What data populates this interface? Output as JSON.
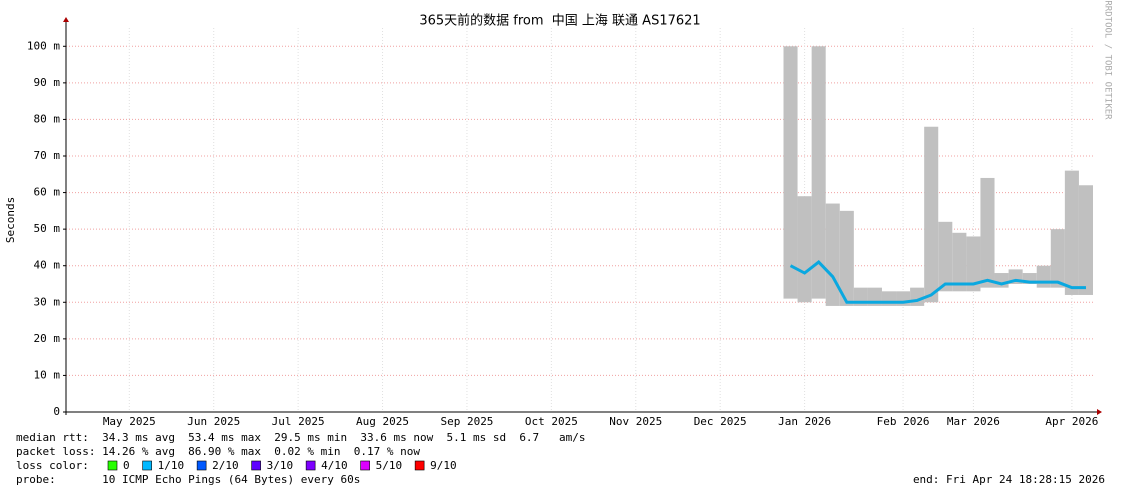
{
  "chart_data": {
    "type": "smoke",
    "title": "365天前的数据 from  中国 上海 联通 AS17621",
    "ylabel": "Seconds",
    "side_text": "RRDTOOL / TOBI OETIKER",
    "ylim": [
      0,
      105
    ],
    "yticks": [
      0,
      {
        "value": 10,
        "label": "10 m"
      },
      {
        "value": 20,
        "label": "20 m"
      },
      {
        "value": 30,
        "label": "30 m"
      },
      {
        "value": 40,
        "label": "40 m"
      },
      {
        "value": 50,
        "label": "50 m"
      },
      {
        "value": 60,
        "label": "60 m"
      },
      {
        "value": 70,
        "label": "70 m"
      },
      {
        "value": 80,
        "label": "80 m"
      },
      {
        "value": 90,
        "label": "90 m"
      },
      {
        "value": 100,
        "label": "100 m"
      }
    ],
    "grid": true,
    "categories": [
      null,
      null,
      null,
      null,
      "May 2025",
      null,
      null,
      null,
      null,
      null,
      "Jun 2025",
      null,
      null,
      null,
      null,
      null,
      "Jul 2025",
      null,
      null,
      null,
      null,
      null,
      "Aug 2025",
      null,
      null,
      null,
      null,
      null,
      "Sep 2025",
      null,
      null,
      null,
      null,
      null,
      "Oct 2025",
      null,
      null,
      null,
      null,
      null,
      "Nov 2025",
      null,
      null,
      null,
      null,
      null,
      "Dec 2025",
      null,
      null,
      null,
      null,
      null,
      "Jan 2026",
      null,
      null,
      null,
      null,
      null,
      null,
      "Feb 2026",
      null,
      null,
      null,
      null,
      "Mar 2026",
      null,
      null,
      null,
      null,
      null,
      null,
      "Apr 2026",
      null
    ],
    "series": [
      {
        "color": "#c0c0c0",
        "values": [
          null,
          null,
          null,
          null,
          null,
          null,
          null,
          null,
          null,
          null,
          null,
          null,
          null,
          null,
          null,
          null,
          null,
          null,
          null,
          null,
          null,
          null,
          null,
          null,
          null,
          null,
          null,
          null,
          null,
          null,
          null,
          null,
          null,
          null,
          null,
          null,
          null,
          null,
          null,
          null,
          null,
          null,
          null,
          null,
          null,
          null,
          null,
          null,
          null,
          null,
          null,
          100,
          59,
          100,
          57,
          55,
          34,
          34,
          33,
          33,
          34,
          78,
          52,
          49,
          48,
          64,
          38,
          39,
          38,
          40,
          50,
          66,
          62
        ]
      },
      {
        "color": "#0aa8e0",
        "values": [
          null,
          null,
          null,
          null,
          null,
          null,
          null,
          null,
          null,
          null,
          null,
          null,
          null,
          null,
          null,
          null,
          null,
          null,
          null,
          null,
          null,
          null,
          null,
          null,
          null,
          null,
          null,
          null,
          null,
          null,
          null,
          null,
          null,
          null,
          null,
          null,
          null,
          null,
          null,
          null,
          null,
          null,
          null,
          null,
          null,
          null,
          null,
          null,
          null,
          null,
          null,
          40,
          38,
          41,
          37,
          30,
          30,
          30,
          30,
          30,
          30.5,
          32,
          35,
          35,
          35,
          36,
          35,
          36,
          35.5,
          35.5,
          35.5,
          34,
          34
        ]
      },
      {
        "color": "#808080",
        "values": [
          null,
          null,
          null,
          null,
          null,
          null,
          null,
          null,
          null,
          null,
          null,
          null,
          null,
          null,
          null,
          null,
          null,
          null,
          null,
          null,
          null,
          null,
          null,
          null,
          null,
          null,
          null,
          null,
          null,
          null,
          null,
          null,
          null,
          null,
          null,
          null,
          null,
          null,
          null,
          null,
          null,
          null,
          null,
          null,
          null,
          null,
          null,
          null,
          null,
          null,
          null,
          31,
          30,
          31,
          29,
          29,
          29,
          29,
          29,
          29,
          29,
          30,
          33,
          33,
          33,
          34,
          34,
          35,
          35,
          34,
          34,
          32,
          32
        ]
      }
    ],
    "stats": [
      "median rtt:  34.3 ms avg  53.4 ms max  29.5 ms min  33.6 ms now  5.1 ms sd  6.7   am/s",
      "packet loss: 14.26 % avg  86.90 % max  0.02 % min  0.17 % now"
    ],
    "loss_label": "loss color:",
    "loss_colors": [
      {
        "label": "0",
        "color": "#26ff00"
      },
      {
        "label": "1/10",
        "color": "#00b8ff"
      },
      {
        "label": "2/10",
        "color": "#0059ff"
      },
      {
        "label": "3/10",
        "color": "#5e00ff"
      },
      {
        "label": "4/10",
        "color": "#7e00ff"
      },
      {
        "label": "5/10",
        "color": "#dd00ff"
      },
      {
        "label": "9/10",
        "color": "#ff0000"
      }
    ],
    "probe": "probe:       10 ICMP Echo Pings (64 Bytes) every 60s",
    "end": "end: Fri Apr 24 18:28:15 2026"
  }
}
